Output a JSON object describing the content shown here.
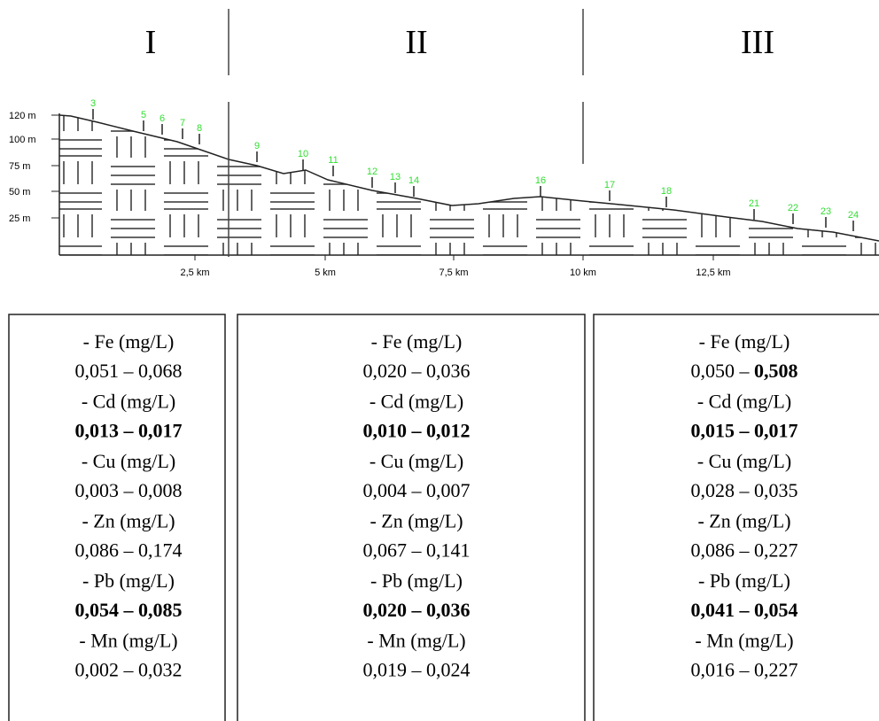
{
  "zones": [
    "I",
    "II",
    "III"
  ],
  "profile": {
    "y_labels": [
      "120 m",
      "100 m",
      "75 m",
      "50 m",
      "25 m"
    ],
    "x_labels": [
      "2,5 km",
      "5 km",
      "7,5 km",
      "10 km",
      "12,5 km"
    ],
    "points": [
      "3",
      "5",
      "6",
      "7",
      "8",
      "9",
      "10",
      "11",
      "12",
      "13",
      "14",
      "16",
      "17",
      "18",
      "21",
      "22",
      "23",
      "24"
    ]
  },
  "boxes": [
    {
      "rows": [
        {
          "label": "- Fe (mg/L)",
          "range": [
            {
              "text": "0,051 – 0,068",
              "bold": false
            }
          ]
        },
        {
          "label": "- Cd (mg/L)",
          "range": [
            {
              "text": "0,013 – 0,017",
              "bold": true
            }
          ]
        },
        {
          "label": "- Cu (mg/L)",
          "range": [
            {
              "text": "0,003 – 0,008",
              "bold": false
            }
          ]
        },
        {
          "label": "- Zn (mg/L)",
          "range": [
            {
              "text": "0,086 – 0,174",
              "bold": false
            }
          ]
        },
        {
          "label": "- Pb (mg/L)",
          "range": [
            {
              "text": "0,054 – 0,085",
              "bold": true
            }
          ]
        },
        {
          "label": "- Mn (mg/L)",
          "range": [
            {
              "text": "0,002 – 0,032",
              "bold": false
            }
          ]
        }
      ]
    },
    {
      "rows": [
        {
          "label": "- Fe (mg/L)",
          "range": [
            {
              "text": "0,020 – 0,036",
              "bold": false
            }
          ]
        },
        {
          "label": "- Cd (mg/L)",
          "range": [
            {
              "text": "0,010 – 0,012",
              "bold": true
            }
          ]
        },
        {
          "label": "- Cu (mg/L)",
          "range": [
            {
              "text": "0,004 – 0,007",
              "bold": false
            }
          ]
        },
        {
          "label": "- Zn (mg/L)",
          "range": [
            {
              "text": "0,067 – 0,141",
              "bold": false
            }
          ]
        },
        {
          "label": "- Pb (mg/L)",
          "range": [
            {
              "text": "0,020 – 0,036",
              "bold": true
            }
          ]
        },
        {
          "label": "- Mn (mg/L)",
          "range": [
            {
              "text": "0,019 – 0,024",
              "bold": false
            }
          ]
        }
      ]
    },
    {
      "rows": [
        {
          "label": "- Fe (mg/L)",
          "range": [
            {
              "text": "0,050 – ",
              "bold": false
            },
            {
              "text": "0,508",
              "bold": true
            }
          ]
        },
        {
          "label": "- Cd (mg/L)",
          "range": [
            {
              "text": "0,015 – 0,017",
              "bold": true
            }
          ]
        },
        {
          "label": "- Cu (mg/L)",
          "range": [
            {
              "text": "0,028 – 0,035",
              "bold": false
            }
          ]
        },
        {
          "label": "- Zn (mg/L)",
          "range": [
            {
              "text": "0,086 – 0,227",
              "bold": false
            }
          ]
        },
        {
          "label": "- Pb (mg/L)",
          "range": [
            {
              "text": "0,041 – 0,054",
              "bold": true
            }
          ]
        },
        {
          "label": "- Mn (mg/L)",
          "range": [
            {
              "text": "0,016 – 0,227",
              "bold": false
            }
          ]
        }
      ]
    }
  ]
}
